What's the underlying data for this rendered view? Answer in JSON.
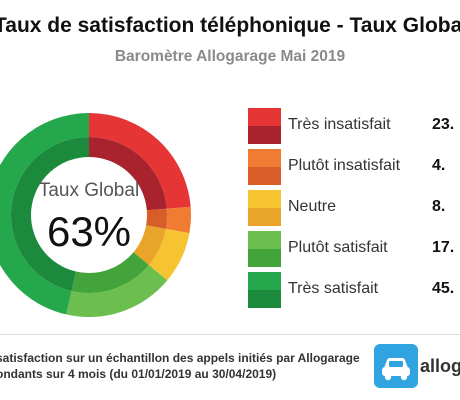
{
  "chart_data": {
    "type": "pie",
    "title": "Taux de satisfaction téléphonique - Taux Global",
    "subtitle": "Baromètre Allogarage Mai 2019",
    "center_label": "Taux Global",
    "center_value": "63%",
    "categories": [
      "Très insatisfait",
      "Plutôt insatisfait",
      "Neutre",
      "Plutôt satisfait",
      "Très satisfait"
    ],
    "values": [
      23,
      4,
      8,
      17,
      45
    ],
    "value_labels": [
      "23.",
      "4.",
      "8.",
      "17.",
      "45."
    ],
    "colors_light": [
      "#e53535",
      "#f07b33",
      "#f7c431",
      "#6cbf4e",
      "#25a84c"
    ],
    "colors_dark": [
      "#a8232e",
      "#d85d29",
      "#e9a42a",
      "#43a43c",
      "#1b8a3d"
    ],
    "legend_position": "right"
  },
  "footer": {
    "line1": "satisfaction sur un échantillon des appels initiés par Allogarage",
    "line2": "ondants sur 4 mois (du 01/01/2019 au 30/04/2019)"
  },
  "logo": {
    "text": "allogar",
    "icon": "car-icon"
  }
}
